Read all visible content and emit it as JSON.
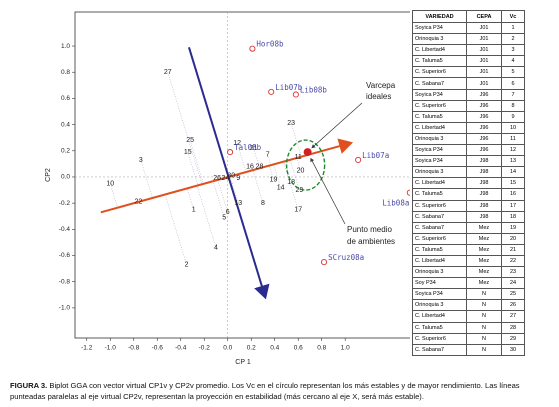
{
  "chart_data": {
    "type": "biplot",
    "xlabel": "CP 1",
    "ylabel": "CP2",
    "xlim": [
      -1.3,
      1.56
    ],
    "ylim": [
      -1.23,
      1.26
    ],
    "xticks": [
      -1.2,
      {
        "value": -1,
        "label": "-1.0"
      },
      -0.8,
      -0.6,
      -0.4,
      -0.2,
      {
        "value": 0,
        "label": "0.0"
      },
      0.2,
      0.4,
      0.6,
      0.8,
      {
        "value": 1,
        "label": "1.0"
      }
    ],
    "yticks": [
      {
        "value": -1,
        "label": "-1.0"
      },
      -0.8,
      -0.6,
      -0.4,
      -0.2,
      {
        "value": 0,
        "label": "0.0"
      },
      0.2,
      0.4,
      0.6,
      0.8,
      {
        "value": 1,
        "label": "1.0"
      }
    ],
    "genotypes": {
      "labels": [
        1,
        2,
        3,
        4,
        5,
        6,
        7,
        8,
        9,
        10,
        11,
        12,
        13,
        14,
        15,
        16,
        17,
        18,
        19,
        20,
        21,
        22,
        23,
        24,
        25,
        26,
        27,
        28,
        29,
        30
      ],
      "x": [
        -0.29,
        -0.35,
        -0.74,
        -0.1,
        -0.03,
        0.0,
        0.34,
        0.3,
        0.09,
        -1.0,
        0.6,
        0.08,
        0.09,
        0.45,
        -0.34,
        0.19,
        0.6,
        0.54,
        0.39,
        0.62,
        0.22,
        -0.76,
        0.54,
        -0.02,
        -0.32,
        -0.09,
        -0.51,
        0.27,
        0.61,
        0.03
      ],
      "y": [
        -0.25,
        -0.67,
        0.13,
        -0.54,
        -0.31,
        -0.27,
        0.17,
        -0.2,
        -0.01,
        -0.05,
        0.15,
        0.26,
        -0.2,
        -0.08,
        0.19,
        0.08,
        -0.25,
        -0.04,
        -0.02,
        0.05,
        0.22,
        -0.19,
        0.41,
        -0.01,
        0.28,
        -0.01,
        0.8,
        0.08,
        -0.1,
        0.01
      ]
    },
    "environments": {
      "labels": [
        "Hor08b",
        "Lib07b",
        "Lib08b",
        "Tal08b",
        "Lib07a",
        "Lib08a",
        "SCruz08a"
      ],
      "x": [
        0.21,
        0.37,
        0.58,
        0.02,
        1.11,
        1.55,
        0.82
      ],
      "y": [
        0.98,
        0.65,
        0.63,
        0.19,
        0.13,
        -0.12,
        -0.65
      ],
      "color": "#e03030"
    },
    "cp1v": {
      "x": [
        -1.08,
        1.05
      ],
      "y": [
        -0.27,
        0.26
      ],
      "color": "#e0501e"
    },
    "cp2v": {
      "x": [
        -0.33,
        0.32
      ],
      "y": [
        0.99,
        -0.92
      ],
      "color": "#2a2a90"
    },
    "mean_point": {
      "x": 0.68,
      "y": 0.19,
      "color": "#d02020"
    },
    "annotations": [
      "Varcepa",
      "ideales",
      "Punto medio",
      "de ambientes"
    ]
  },
  "table": {
    "header": [
      "VARIEDAD",
      "CEPA",
      "Vc"
    ],
    "rows": [
      [
        "Soyica P34",
        "J01",
        1
      ],
      [
        "Orinoquia 3",
        "J01",
        2
      ],
      [
        "C. Libertad4",
        "J01",
        3
      ],
      [
        "C. Taluma5",
        "J01",
        4
      ],
      [
        "C. Superior6",
        "J01",
        5
      ],
      [
        "C. Sabana7",
        "J01",
        6
      ],
      [
        "Soyica P34",
        "J96",
        7
      ],
      [
        "C. Superior6",
        "J96",
        8
      ],
      [
        "C. Taluma5",
        "J96",
        9
      ],
      [
        "C. Libertad4",
        "J96",
        10
      ],
      [
        "Orinoquia 3",
        "J96",
        11
      ],
      [
        "Soyica P34",
        "J96",
        12
      ],
      [
        "Soyica P34",
        "J98",
        13
      ],
      [
        "Orinoquia 3",
        "J98",
        14
      ],
      [
        "C. Libertad4",
        "J98",
        15
      ],
      [
        "C. Taluma5",
        "J98",
        16
      ],
      [
        "C. Superior6",
        "J98",
        17
      ],
      [
        "C. Sabana7",
        "J98",
        18
      ],
      [
        "C. Sabana7",
        "Mez",
        19
      ],
      [
        "C. Superior6",
        "Mez",
        20
      ],
      [
        "C. Taluma5",
        "Mez",
        21
      ],
      [
        "C. Libertad4",
        "Mez",
        22
      ],
      [
        "Orinoquia 3",
        "Mez",
        23
      ],
      [
        "Soy P34",
        "Mez",
        24
      ],
      [
        "Soyica P34",
        "N",
        25
      ],
      [
        "Orinoquia 3",
        "N",
        26
      ],
      [
        "C. Libertad4",
        "N",
        27
      ],
      [
        "C. Taluma5",
        "N",
        28
      ],
      [
        "C. Superior6",
        "N",
        29
      ],
      [
        "C. Sabana7",
        "N",
        30
      ]
    ]
  },
  "caption": {
    "label": "FIGURA 3.",
    "text": "Biplot GGA con vector virtual CP1v y CP2v promedio. Los Vc en el círculo representan los más estables y de mayor rendimiento. Las líneas punteadas paralelas al eje virtual CP2v, representan la proyección en estabilidad (más cercano al eje X, será más estable)."
  }
}
